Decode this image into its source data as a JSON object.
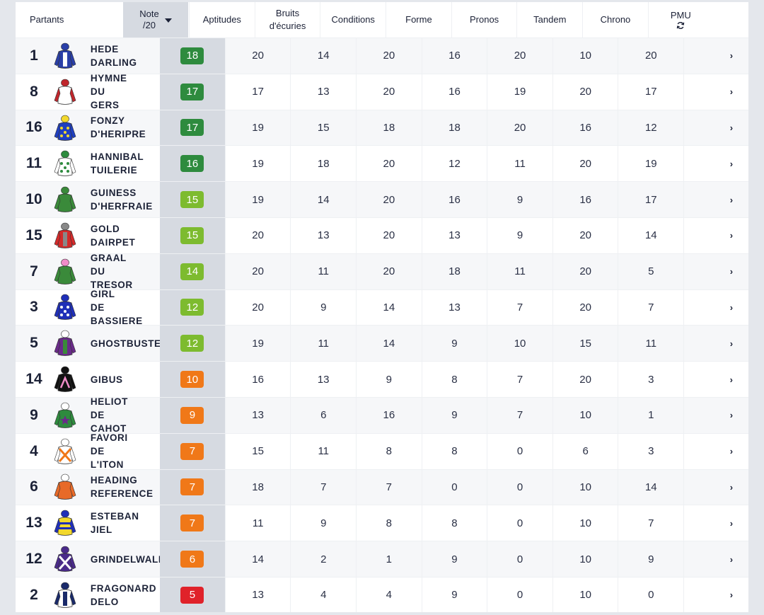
{
  "header": {
    "partants": "Partants",
    "note_line1": "Note",
    "note_line2": "/20",
    "aptitudes": "Aptitudes",
    "bruits_line1": "Bruits",
    "bruits_line2": "d'écuries",
    "conditions": "Conditions",
    "forme": "Forme",
    "pronos": "Pronos",
    "tandem": "Tandem",
    "chrono": "Chrono",
    "pmu": "PMU",
    "pmu_icon": "refresh-icon"
  },
  "colors": {
    "dark_green": "#2e8b3e",
    "light_green": "#7dbb2f",
    "orange": "#f07818",
    "red": "#e0222a",
    "note_column": "#d6dae1"
  },
  "rows": [
    {
      "num": "1",
      "name": "HEDE\nDARLING",
      "note": "18",
      "note_color": "dark_green",
      "aptitudes": "20",
      "bruits": "14",
      "conditions": "20",
      "forme": "16",
      "pronos": "20",
      "tandem": "10",
      "chrono": "20",
      "silk": {
        "body": "#2a3fa8",
        "sleeve": "#2a3fa8",
        "cap": "#2a3fa8",
        "pattern": "stripe",
        "accent": "#ffffff"
      }
    },
    {
      "num": "8",
      "name": "HYMNE\nDU\nGERS",
      "note": "17",
      "note_color": "dark_green",
      "aptitudes": "17",
      "bruits": "13",
      "conditions": "20",
      "forme": "16",
      "pronos": "19",
      "tandem": "20",
      "chrono": "17",
      "silk": {
        "body": "#ffffff",
        "sleeve": "#c0262c",
        "cap": "#c0262c",
        "pattern": "none",
        "accent": "#c0262c"
      }
    },
    {
      "num": "16",
      "name": "FONZY\nD'HERIPRE",
      "note": "17",
      "note_color": "dark_green",
      "aptitudes": "19",
      "bruits": "15",
      "conditions": "18",
      "forme": "18",
      "pronos": "20",
      "tandem": "16",
      "chrono": "12",
      "silk": {
        "body": "#1f3fc0",
        "sleeve": "#1f3fc0",
        "cap": "#f2d82c",
        "pattern": "dots",
        "accent": "#f2d82c"
      }
    },
    {
      "num": "11",
      "name": "HANNIBAL\nTUILERIE",
      "note": "16",
      "note_color": "dark_green",
      "aptitudes": "19",
      "bruits": "18",
      "conditions": "20",
      "forme": "12",
      "pronos": "11",
      "tandem": "20",
      "chrono": "19",
      "silk": {
        "body": "#ffffff",
        "sleeve": "#ffffff",
        "cap": "#2e8b3e",
        "pattern": "dots",
        "accent": "#2e8b3e"
      }
    },
    {
      "num": "10",
      "name": "GUINESS\nD'HERFRAIE",
      "note": "15",
      "note_color": "light_green",
      "aptitudes": "19",
      "bruits": "14",
      "conditions": "20",
      "forme": "16",
      "pronos": "9",
      "tandem": "16",
      "chrono": "17",
      "silk": {
        "body": "#3a8a3a",
        "sleeve": "#3a8a3a",
        "cap": "#3a8a3a",
        "pattern": "none",
        "accent": "#3a8a3a"
      }
    },
    {
      "num": "15",
      "name": "GOLD\nDAIRPET",
      "note": "15",
      "note_color": "light_green",
      "aptitudes": "20",
      "bruits": "13",
      "conditions": "20",
      "forme": "13",
      "pronos": "9",
      "tandem": "20",
      "chrono": "14",
      "silk": {
        "body": "#d42a2a",
        "sleeve": "#d42a2a",
        "cap": "#888888",
        "pattern": "stripe",
        "accent": "#888888"
      }
    },
    {
      "num": "7",
      "name": "GRAAL\nDU\nTRESOR",
      "note": "14",
      "note_color": "light_green",
      "aptitudes": "20",
      "bruits": "11",
      "conditions": "20",
      "forme": "18",
      "pronos": "11",
      "tandem": "20",
      "chrono": "5",
      "silk": {
        "body": "#3a8a3a",
        "sleeve": "#3a8a3a",
        "cap": "#f08cc8",
        "pattern": "none",
        "accent": "#f08cc8"
      }
    },
    {
      "num": "3",
      "name": "GIRL DE\nBASSIERE",
      "note": "12",
      "note_color": "light_green",
      "aptitudes": "20",
      "bruits": "9",
      "conditions": "14",
      "forme": "13",
      "pronos": "7",
      "tandem": "20",
      "chrono": "7",
      "silk": {
        "body": "#1f2fb8",
        "sleeve": "#1f2fb8",
        "cap": "#1f2fb8",
        "pattern": "dots",
        "accent": "#ffffff"
      }
    },
    {
      "num": "5",
      "name": "GHOSTBUSTER",
      "note": "12",
      "note_color": "light_green",
      "aptitudes": "19",
      "bruits": "11",
      "conditions": "14",
      "forme": "9",
      "pronos": "10",
      "tandem": "15",
      "chrono": "11",
      "silk": {
        "body": "#6a2a8a",
        "sleeve": "#6a2a8a",
        "cap": "#ffffff",
        "pattern": "stripe",
        "accent": "#3a8a3a"
      }
    },
    {
      "num": "14",
      "name": "GIBUS",
      "note": "10",
      "note_color": "orange",
      "aptitudes": "16",
      "bruits": "13",
      "conditions": "9",
      "forme": "8",
      "pronos": "7",
      "tandem": "20",
      "chrono": "3",
      "silk": {
        "body": "#111111",
        "sleeve": "#111111",
        "cap": "#111111",
        "pattern": "chevron",
        "accent": "#f08cc8"
      }
    },
    {
      "num": "9",
      "name": "HELIOT\nDE\nCAHOT",
      "note": "9",
      "note_color": "orange",
      "aptitudes": "13",
      "bruits": "6",
      "conditions": "16",
      "forme": "9",
      "pronos": "7",
      "tandem": "10",
      "chrono": "1",
      "silk": {
        "body": "#2e8b3e",
        "sleeve": "#2e8b3e",
        "cap": "#ffffff",
        "pattern": "star",
        "accent": "#6a2a8a"
      }
    },
    {
      "num": "4",
      "name": "FAVORI\nDE\nL'ITON",
      "note": "7",
      "note_color": "orange",
      "aptitudes": "15",
      "bruits": "11",
      "conditions": "8",
      "forme": "8",
      "pronos": "0",
      "tandem": "6",
      "chrono": "3",
      "silk": {
        "body": "#ffffff",
        "sleeve": "#ffffff",
        "cap": "#ffffff",
        "pattern": "cross",
        "accent": "#f07818"
      }
    },
    {
      "num": "6",
      "name": "HEADING\nREFERENCE",
      "note": "7",
      "note_color": "orange",
      "aptitudes": "18",
      "bruits": "7",
      "conditions": "7",
      "forme": "0",
      "pronos": "0",
      "tandem": "10",
      "chrono": "14",
      "silk": {
        "body": "#e86a28",
        "sleeve": "#e86a28",
        "cap": "#ffffff",
        "pattern": "none",
        "accent": "#e86a28"
      }
    },
    {
      "num": "13",
      "name": "ESTEBAN\nJIEL",
      "note": "7",
      "note_color": "orange",
      "aptitudes": "11",
      "bruits": "9",
      "conditions": "8",
      "forme": "8",
      "pronos": "0",
      "tandem": "10",
      "chrono": "7",
      "silk": {
        "body": "#f2d82c",
        "sleeve": "#1f2fb8",
        "cap": "#1f2fb8",
        "pattern": "hoops",
        "accent": "#1f2fb8"
      }
    },
    {
      "num": "12",
      "name": "GRINDELWALD",
      "note": "6",
      "note_color": "orange",
      "aptitudes": "14",
      "bruits": "2",
      "conditions": "1",
      "forme": "9",
      "pronos": "0",
      "tandem": "10",
      "chrono": "9",
      "silk": {
        "body": "#4a2a8a",
        "sleeve": "#4a2a8a",
        "cap": "#4a2a8a",
        "pattern": "cross",
        "accent": "#ffffff"
      }
    },
    {
      "num": "2",
      "name": "FRAGONARD\nDELO",
      "note": "5",
      "note_color": "red",
      "aptitudes": "13",
      "bruits": "4",
      "conditions": "4",
      "forme": "9",
      "pronos": "0",
      "tandem": "10",
      "chrono": "0",
      "silk": {
        "body": "#ffffff",
        "sleeve": "#1a2a6a",
        "cap": "#1a2a6a",
        "pattern": "stripe",
        "accent": "#1a2a6a"
      }
    }
  ]
}
